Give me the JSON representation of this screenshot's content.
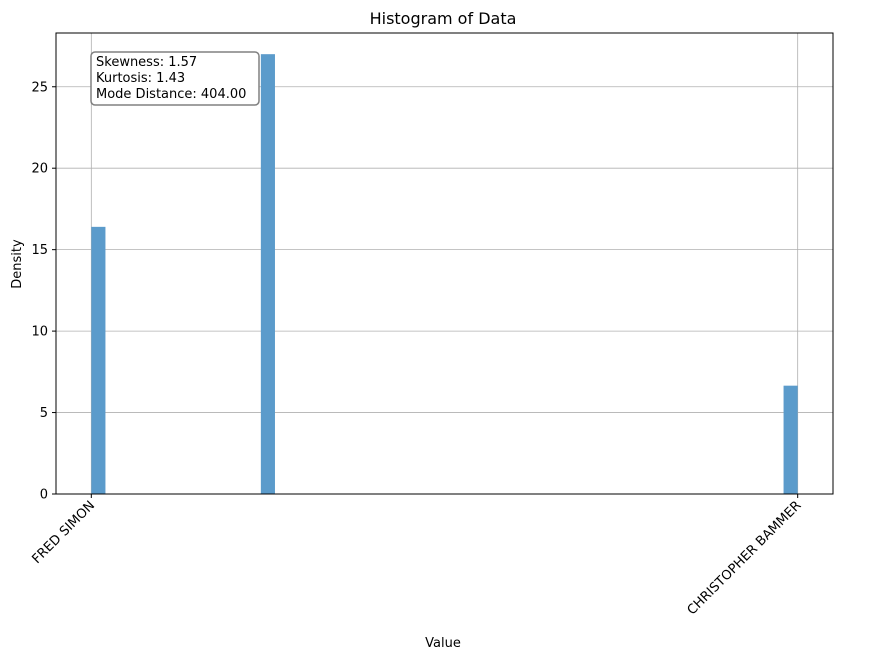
{
  "chart_data": {
    "type": "bar",
    "title": "Histogram of Data",
    "xlabel": "Value",
    "ylabel": "Density",
    "ylim": [
      0,
      28.3
    ],
    "yticks": [
      0,
      5,
      10,
      15,
      20,
      25
    ],
    "x_domain": [
      -0.05,
      1.05
    ],
    "xticks": [
      {
        "x": 0,
        "label": "FRED SIMON"
      },
      {
        "x": 1,
        "label": "CHRISTOPHER BAMMER"
      }
    ],
    "bar_width": 0.02,
    "bars": [
      {
        "x": 0.0,
        "value": 16.4
      },
      {
        "x": 0.24,
        "value": 27.0
      },
      {
        "x": 0.98,
        "value": 6.65
      }
    ],
    "bar_color": "#5b9bcb",
    "grid": true,
    "annotation": {
      "lines": [
        "Skewness: 1.57",
        "Kurtosis: 1.43",
        "Mode Distance: 404.00"
      ],
      "placement": "top-left"
    }
  }
}
